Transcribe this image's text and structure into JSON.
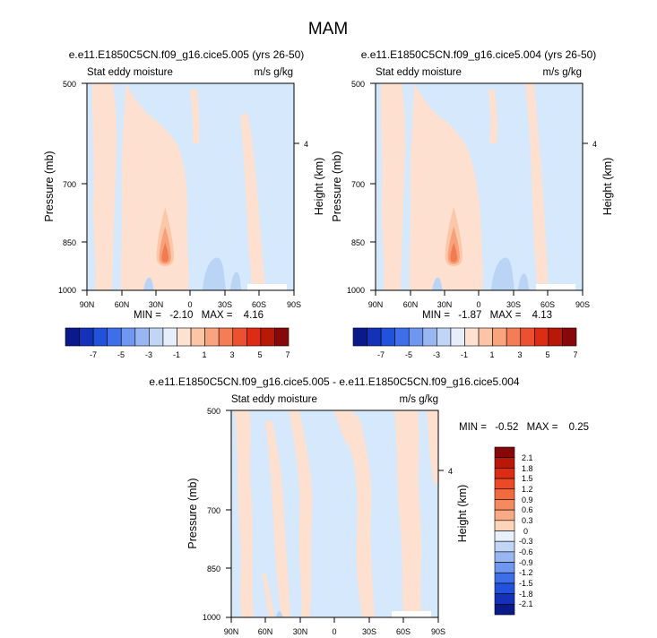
{
  "page_title": "MAM",
  "colors": {
    "pos1": "#fde0cf",
    "pos2": "#fbc7a8",
    "pos3": "#f8a07a",
    "pos4": "#f27b52",
    "neg1": "#d6e8fb",
    "neg2": "#b9d4f5",
    "neg3": "#8fb8ee",
    "gap": "#ffffff",
    "frame": "#000000"
  },
  "chart_data": [
    {
      "type": "contour",
      "title": "e.e11.E1850C5CN.f09_g16.cice5.005 (yrs 26-50)",
      "left_label": "Stat eddy moisture",
      "right_label": "m/s g/kg",
      "ylabel": "Pressure (mb)",
      "ylabel_right": "Height (km)",
      "yticks": [
        "500",
        "700",
        "850",
        "1000"
      ],
      "yticks_right": [
        "4"
      ],
      "xticks": [
        "90N",
        "60N",
        "30N",
        "0",
        "30S",
        "60S",
        "90S"
      ],
      "min_label": "MIN =",
      "min_value": "-2.10",
      "max_label": "MAX =",
      "max_value": "4.16",
      "peak": {
        "lat": 22,
        "pressure": 900,
        "value": 4.16
      },
      "colorbar_labels": [
        "-7",
        "-5",
        "-3",
        "-1",
        "1",
        "3",
        "5",
        "7"
      ]
    },
    {
      "type": "contour",
      "title": "e.e11.E1850C5CN.f09_g16.cice5.004 (yrs 26-50)",
      "left_label": "Stat eddy moisture",
      "right_label": "m/s g/kg",
      "ylabel": "Pressure (mb)",
      "ylabel_right": "Height (km)",
      "yticks": [
        "500",
        "700",
        "850",
        "1000"
      ],
      "yticks_right": [
        "4"
      ],
      "xticks": [
        "90N",
        "60N",
        "30N",
        "0",
        "30S",
        "60S",
        "90S"
      ],
      "min_label": "MIN =",
      "min_value": "-1.87",
      "max_label": "MAX =",
      "max_value": "4.13",
      "peak": {
        "lat": 22,
        "pressure": 900,
        "value": 4.13
      },
      "colorbar_labels": [
        "-7",
        "-5",
        "-3",
        "-1",
        "1",
        "3",
        "5",
        "7"
      ]
    },
    {
      "type": "contour",
      "title": "e.e11.E1850C5CN.f09_g16.cice5.005 - e.e11.E1850C5CN.f09_g16.cice5.004",
      "left_label": "Stat eddy moisture",
      "right_label": "m/s g/kg",
      "ylabel": "Pressure (mb)",
      "ylabel_right": "Height (km)",
      "yticks": [
        "500",
        "700",
        "850",
        "1000"
      ],
      "yticks_right": [
        "4"
      ],
      "xticks": [
        "90N",
        "60N",
        "30N",
        "0",
        "30S",
        "60S",
        "90S"
      ],
      "min_label": "MIN =",
      "min_value": "-0.52",
      "max_label": "MAX =",
      "max_value": "0.25",
      "colorbar_labels": [
        "2.1",
        "1.8",
        "1.5",
        "1.2",
        "0.9",
        "0.6",
        "0.3",
        "0",
        "-0.3",
        "-0.6",
        "-0.9",
        "-1.2",
        "-1.5",
        "-1.8",
        "-2.1"
      ]
    }
  ],
  "colorbar_top": {
    "colors": [
      "#0a1a8a",
      "#1432b8",
      "#2252dc",
      "#3f6fe8",
      "#6f97ef",
      "#98b6f2",
      "#c1d6f7",
      "#e6eefc",
      "#fde2d2",
      "#fcc6a6",
      "#f9a47e",
      "#f47d55",
      "#ec5030",
      "#dc2c14",
      "#b81808",
      "#860808"
    ]
  },
  "colorbar_diff": {
    "colors": [
      "#860808",
      "#b81808",
      "#dc2c14",
      "#ec4a26",
      "#f26a40",
      "#f58a5e",
      "#f8aa84",
      "#fdd3b9",
      "#e8f1fb",
      "#c1d6f7",
      "#98b6f2",
      "#6f97ef",
      "#3f6fe8",
      "#2252dc",
      "#1432b8",
      "#0a1a8a"
    ]
  }
}
